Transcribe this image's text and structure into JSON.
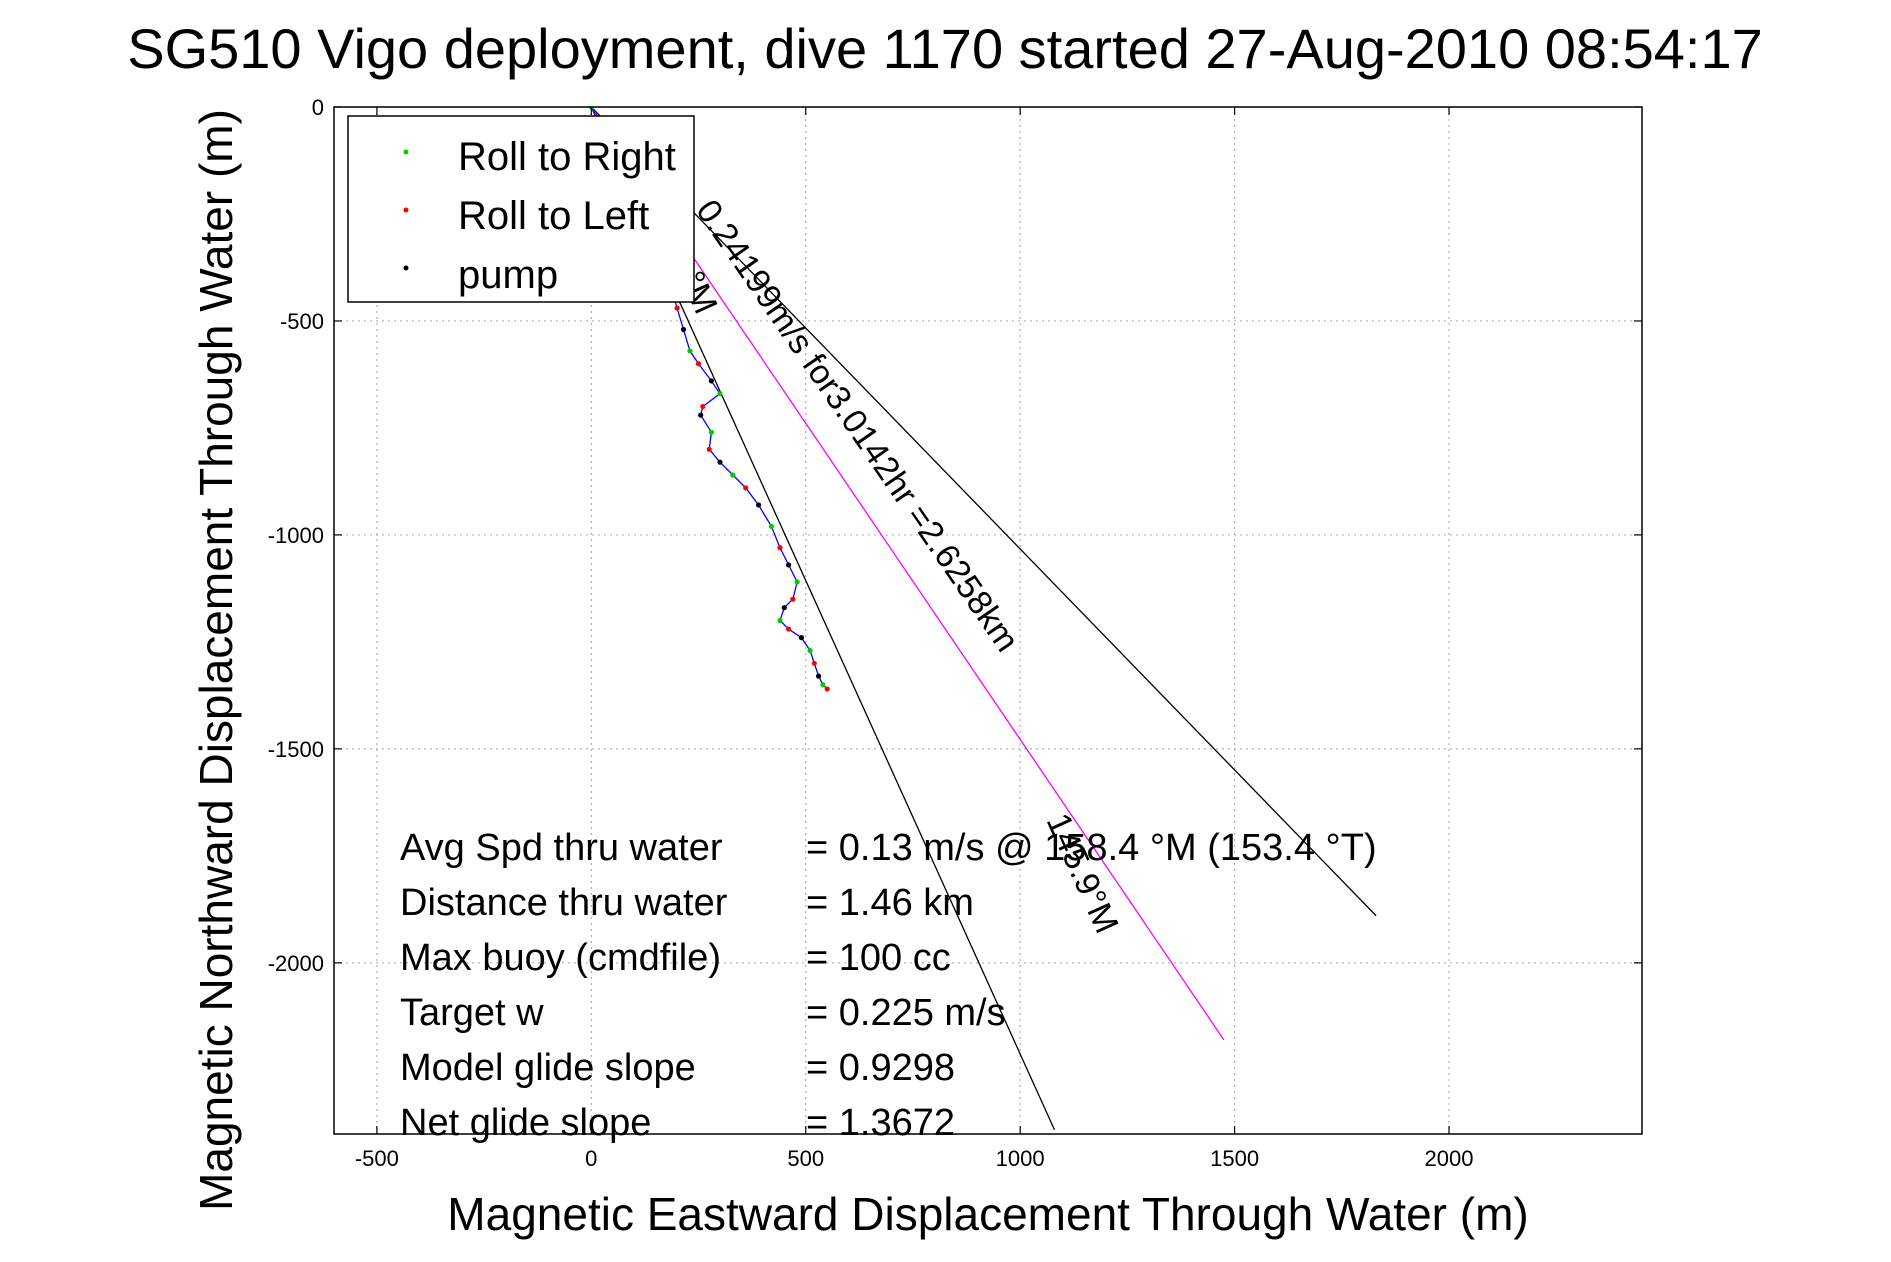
{
  "chart_data": {
    "type": "line",
    "title": "SG510 Vigo deployment, dive 1170 started 27-Aug-2010 08:54:17",
    "xlabel": "Magnetic Eastward Displacement Through Water (m)",
    "ylabel": "Magnetic Northward Displacement Through Water (m)",
    "xlim": [
      -600,
      2450
    ],
    "ylim": [
      -2400,
      0
    ],
    "x_ticks": [
      -500,
      0,
      500,
      1000,
      1500,
      2000
    ],
    "y_ticks": [
      0,
      -500,
      -1000,
      -1500,
      -2000
    ],
    "grid": true,
    "legend_position": "top-left",
    "legend": [
      {
        "label": "Roll to Right",
        "color": "#00cc00"
      },
      {
        "label": "Roll to Left",
        "color": "#ff0000"
      },
      {
        "label": "pump",
        "color": "#000000"
      }
    ],
    "series": [
      {
        "color": "#0000ff",
        "x": [
          0,
          30,
          60,
          90,
          120,
          150,
          180,
          200,
          215,
          230,
          250,
          280,
          300,
          260,
          255,
          280,
          275,
          300,
          330,
          360,
          390,
          420,
          440,
          460,
          480,
          470,
          450,
          440,
          460,
          490,
          510,
          520,
          530,
          540,
          550
        ],
        "y": [
          0,
          -60,
          -120,
          -180,
          -250,
          -320,
          -400,
          -470,
          -520,
          -570,
          -600,
          -640,
          -670,
          -700,
          -720,
          -760,
          -800,
          -830,
          -860,
          -890,
          -930,
          -980,
          -1030,
          -1070,
          -1110,
          -1150,
          -1170,
          -1200,
          -1220,
          -1240,
          -1270,
          -1300,
          -1330,
          -1350,
          -1360
        ]
      }
    ],
    "reference_lines": [
      {
        "color": "#000000",
        "x": [
          0,
          1830
        ],
        "y": [
          0,
          -1890
        ]
      },
      {
        "color": "#000000",
        "x": [
          0,
          1080
        ],
        "y": [
          0,
          -2390
        ]
      },
      {
        "color": "#ff00ff",
        "x": [
          0,
          1475
        ],
        "y": [
          0,
          -2180
        ]
      }
    ],
    "annotations": {
      "current_label": "0.24199m/s for3.0142hr =2.6258km",
      "heading_upper": "°M",
      "heading_lower": "145.9°M"
    }
  },
  "stats": [
    {
      "label": "Avg Spd thru water",
      "value": "=  0.13 m/s @ 158.4 °M (153.4 °T)"
    },
    {
      "label": "Distance thru water",
      "value": "=  1.46 km"
    },
    {
      "label": "Max buoy (cmdfile)",
      "value": "= 100 cc"
    },
    {
      "label": "Target w",
      "value": "= 0.225 m/s"
    },
    {
      "label": "Model glide slope",
      "value": "= 0.9298"
    },
    {
      "label": "Net glide slope",
      "value": "= 1.3672"
    }
  ]
}
